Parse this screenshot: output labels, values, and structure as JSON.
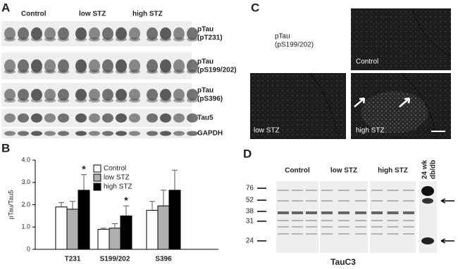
{
  "panels": {
    "a": {
      "letter": "A",
      "groups": [
        "Control",
        "low STZ",
        "high STZ"
      ],
      "rows": [
        [
          "pTau",
          "(pT231)"
        ],
        [
          "pTau",
          "(pS199/202)"
        ],
        [
          "pTau",
          "(pS396)"
        ],
        [
          "Tau5"
        ],
        [
          "GAPDH"
        ]
      ]
    },
    "b": {
      "letter": "B"
    },
    "c": {
      "letter": "C",
      "title": [
        "pTau",
        "(pS199/202)"
      ],
      "images": [
        "Control",
        "low STZ",
        "high STZ"
      ]
    },
    "d": {
      "letter": "D",
      "groups": [
        "Control",
        "low STZ",
        "high STZ"
      ],
      "lane": [
        "24 wk",
        "db/db"
      ],
      "markers": [
        "76",
        "52",
        "38",
        "31",
        "24"
      ],
      "caption": "TauC3"
    }
  },
  "chart_data": {
    "type": "bar",
    "y_label": "pTau/Tau5",
    "categories": [
      "T231",
      "S199/202",
      "S396"
    ],
    "series": [
      {
        "name": "Control",
        "color": "#ffffff",
        "values": [
          1.9,
          0.9,
          1.75
        ],
        "errors": [
          0.2,
          0.05,
          0.4
        ]
      },
      {
        "name": "low STZ",
        "color": "#b0b0b0",
        "values": [
          1.8,
          0.95,
          1.95
        ],
        "errors": [
          0.35,
          0.2,
          0.7
        ]
      },
      {
        "name": "high STZ",
        "color": "#000000",
        "values": [
          2.65,
          1.5,
          2.65
        ],
        "errors": [
          0.7,
          0.45,
          0.9
        ],
        "significance": [
          "*",
          "*",
          null
        ]
      }
    ],
    "ylim": [
      0,
      4
    ],
    "yticks": [
      0,
      {
        "value": 1,
        "label": "1.0"
      },
      {
        "value": 2,
        "label": "2.0"
      },
      {
        "value": 3,
        "label": "3.0"
      },
      {
        "value": 4,
        "label": "4.0"
      }
    ]
  }
}
